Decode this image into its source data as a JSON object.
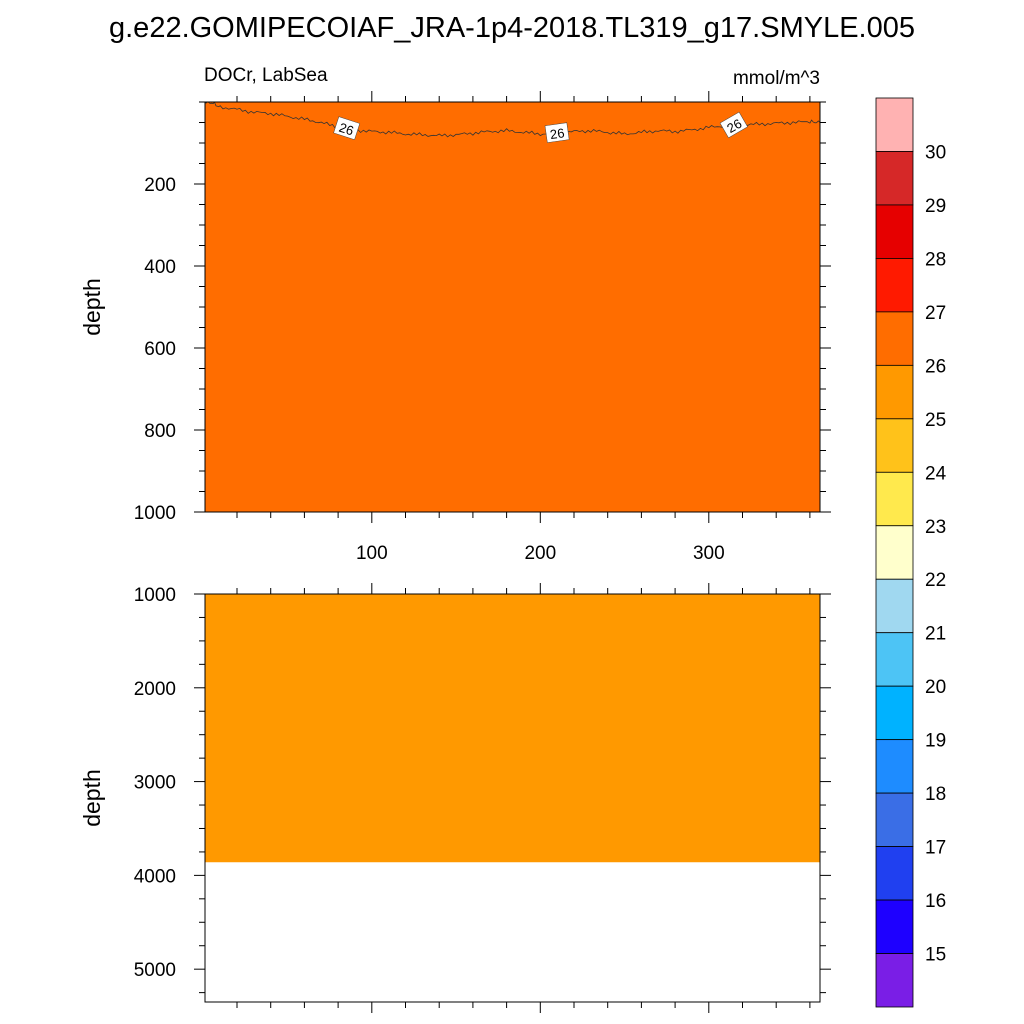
{
  "title": "g.e22.GOMIPECOIAF_JRA-1p4-2018.TL319_g17.SMYLE.005",
  "chart_data": {
    "type": "heatmap",
    "variable_label": "DOCr, LabSea",
    "units_label": "mmol/m^3",
    "xlim": [
      1,
      366
    ],
    "x_tick_labels": [
      "100",
      "200",
      "300"
    ],
    "x_tick_values": [
      100,
      200,
      300
    ],
    "panels": [
      {
        "ylabel": "depth",
        "ylim": [
          0,
          1000
        ],
        "y_reversed": true,
        "y_tick_labels": [
          "200",
          "400",
          "600",
          "800",
          "1000"
        ],
        "y_tick_values": [
          200,
          400,
          600,
          800,
          1000
        ],
        "fill_bands": [
          {
            "value_range": "26-27",
            "color": "#ff6d00",
            "depth_top": 0,
            "depth_bottom_approx": 65
          },
          {
            "value_range": "25-26",
            "color": "#ff9900",
            "depth_top": 65,
            "depth_bottom": 1000
          }
        ],
        "contour": {
          "level": 26,
          "labels": [
            "26",
            "26",
            "26"
          ],
          "label_x": [
            85,
            210,
            315
          ],
          "points": [
            [
              1,
              0
            ],
            [
              5,
              2
            ],
            [
              10,
              12
            ],
            [
              20,
              18
            ],
            [
              30,
              25
            ],
            [
              40,
              28
            ],
            [
              50,
              35
            ],
            [
              60,
              42
            ],
            [
              70,
              50
            ],
            [
              80,
              62
            ],
            [
              90,
              68
            ],
            [
              100,
              72
            ],
            [
              110,
              74
            ],
            [
              120,
              78
            ],
            [
              130,
              80
            ],
            [
              140,
              82
            ],
            [
              150,
              80
            ],
            [
              160,
              76
            ],
            [
              170,
              72
            ],
            [
              180,
              70
            ],
            [
              190,
              74
            ],
            [
              200,
              78
            ],
            [
              210,
              76
            ],
            [
              220,
              72
            ],
            [
              230,
              70
            ],
            [
              240,
              74
            ],
            [
              250,
              78
            ],
            [
              260,
              74
            ],
            [
              270,
              70
            ],
            [
              280,
              72
            ],
            [
              290,
              68
            ],
            [
              300,
              62
            ],
            [
              310,
              58
            ],
            [
              320,
              56
            ],
            [
              330,
              54
            ],
            [
              340,
              52
            ],
            [
              350,
              50
            ],
            [
              360,
              48
            ],
            [
              366,
              50
            ]
          ]
        }
      },
      {
        "ylabel": "depth",
        "ylim": [
          1000,
          5350
        ],
        "y_reversed": true,
        "y_tick_labels": [
          "1000",
          "2000",
          "3000",
          "4000",
          "5000"
        ],
        "y_tick_values": [
          1000,
          2000,
          3000,
          4000,
          5000
        ],
        "fill_bands": [
          {
            "value_range": "25-26",
            "color": "#ff9900",
            "depth_top": 1000,
            "depth_bottom": 3860
          }
        ],
        "missing_below_depth": 3860
      }
    ],
    "colorbar": {
      "orientation": "vertical",
      "labels": [
        "30",
        "29",
        "28",
        "27",
        "26",
        "25",
        "24",
        "23",
        "22",
        "21",
        "20",
        "19",
        "18",
        "17",
        "16",
        "15"
      ],
      "colors": [
        "#ffb2b2",
        "#d62828",
        "#e60000",
        "#ff1a00",
        "#ff6d00",
        "#ff9900",
        "#ffc21a",
        "#ffe94d",
        "#ffffcc",
        "#a0d8f0",
        "#4dc4f5",
        "#00b2ff",
        "#1e8cff",
        "#3a6ee6",
        "#2040f0",
        "#1e00ff",
        "#7a1ee6"
      ]
    }
  }
}
